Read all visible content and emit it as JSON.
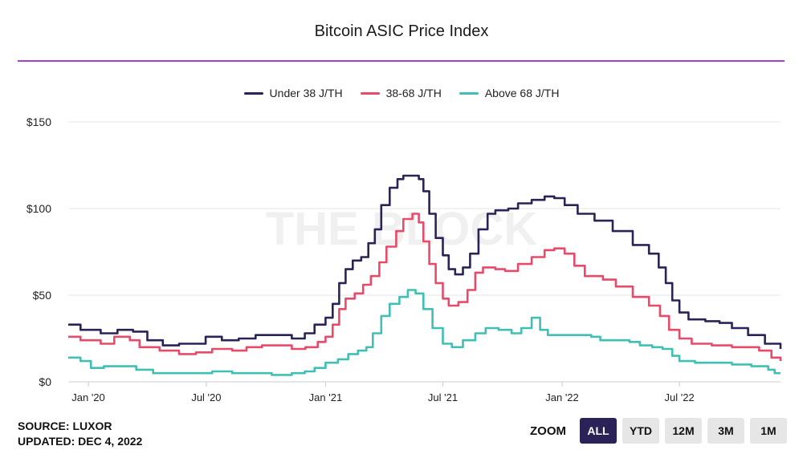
{
  "header": {
    "title": "Bitcoin ASIC Price Index"
  },
  "watermark": "THE BLOCK",
  "footer": {
    "source": "SOURCE: LUXOR",
    "updated": "UPDATED: DEC 4, 2022"
  },
  "zoom": {
    "label": "ZOOM",
    "buttons": [
      "ALL",
      "YTD",
      "12M",
      "3M",
      "1M"
    ],
    "active": "ALL"
  },
  "colors": {
    "accent_rule": "#a53fd1",
    "under38": "#2b2257",
    "mid": "#e84a6a",
    "above68": "#40c0b4",
    "grid": "#e6e6e6",
    "watermark": "#f0f0f0"
  },
  "chart_data": {
    "type": "line",
    "xlabel": "",
    "ylabel": "",
    "ylim": [
      0,
      150
    ],
    "y_ticks": [
      0,
      50,
      100,
      150
    ],
    "y_tick_labels": [
      "$0",
      "$50",
      "$100",
      "$150"
    ],
    "x_range": [
      "2019-12-01",
      "2022-12-04"
    ],
    "x_ticks": [
      "2020-01-01",
      "2020-07-01",
      "2021-01-01",
      "2021-07-01",
      "2022-01-01",
      "2022-07-01"
    ],
    "x_tick_labels": [
      "Jan '20",
      "Jul '20",
      "Jan '21",
      "Jul '21",
      "Jan '22",
      "Jul '22"
    ],
    "grid": true,
    "legend_position": "top-center",
    "step": true,
    "series": [
      {
        "name": "Under 38 J/TH",
        "color": "#2b2257",
        "points": [
          [
            "2019-12-01",
            33
          ],
          [
            "2019-12-20",
            30
          ],
          [
            "2020-01-20",
            28
          ],
          [
            "2020-02-15",
            30
          ],
          [
            "2020-03-10",
            29
          ],
          [
            "2020-04-01",
            24
          ],
          [
            "2020-04-25",
            21
          ],
          [
            "2020-05-20",
            22
          ],
          [
            "2020-06-10",
            22
          ],
          [
            "2020-06-30",
            26
          ],
          [
            "2020-07-25",
            24
          ],
          [
            "2020-08-20",
            25
          ],
          [
            "2020-09-15",
            27
          ],
          [
            "2020-10-15",
            27
          ],
          [
            "2020-11-10",
            25
          ],
          [
            "2020-11-30",
            28
          ],
          [
            "2020-12-15",
            33
          ],
          [
            "2021-01-01",
            37
          ],
          [
            "2021-01-12",
            45
          ],
          [
            "2021-01-22",
            57
          ],
          [
            "2021-02-01",
            65
          ],
          [
            "2021-02-12",
            70
          ],
          [
            "2021-02-25",
            72
          ],
          [
            "2021-03-08",
            80
          ],
          [
            "2021-03-18",
            88
          ],
          [
            "2021-03-28",
            102
          ],
          [
            "2021-04-10",
            112
          ],
          [
            "2021-04-22",
            117
          ],
          [
            "2021-05-01",
            119
          ],
          [
            "2021-05-15",
            119
          ],
          [
            "2021-05-25",
            117
          ],
          [
            "2021-06-01",
            110
          ],
          [
            "2021-06-10",
            97
          ],
          [
            "2021-06-20",
            83
          ],
          [
            "2021-07-01",
            73
          ],
          [
            "2021-07-10",
            65
          ],
          [
            "2021-07-20",
            62
          ],
          [
            "2021-08-01",
            66
          ],
          [
            "2021-08-12",
            74
          ],
          [
            "2021-08-25",
            88
          ],
          [
            "2021-09-08",
            97
          ],
          [
            "2021-09-20",
            99
          ],
          [
            "2021-10-10",
            100
          ],
          [
            "2021-10-25",
            103
          ],
          [
            "2021-11-15",
            105
          ],
          [
            "2021-12-05",
            107
          ],
          [
            "2021-12-20",
            106
          ],
          [
            "2022-01-05",
            102
          ],
          [
            "2022-01-25",
            97
          ],
          [
            "2022-02-20",
            93
          ],
          [
            "2022-03-20",
            87
          ],
          [
            "2022-04-20",
            79
          ],
          [
            "2022-05-15",
            74
          ],
          [
            "2022-05-30",
            66
          ],
          [
            "2022-06-10",
            57
          ],
          [
            "2022-06-20",
            47
          ],
          [
            "2022-07-01",
            40
          ],
          [
            "2022-07-15",
            36
          ],
          [
            "2022-08-10",
            35
          ],
          [
            "2022-09-01",
            34
          ],
          [
            "2022-09-20",
            31
          ],
          [
            "2022-10-15",
            27
          ],
          [
            "2022-11-10",
            22
          ],
          [
            "2022-12-04",
            19
          ]
        ]
      },
      {
        "name": "38-68 J/TH",
        "color": "#e84a6a",
        "points": [
          [
            "2019-12-01",
            26
          ],
          [
            "2019-12-20",
            24
          ],
          [
            "2020-01-20",
            22
          ],
          [
            "2020-02-10",
            26
          ],
          [
            "2020-03-05",
            24
          ],
          [
            "2020-03-20",
            20
          ],
          [
            "2020-04-20",
            18
          ],
          [
            "2020-05-20",
            16
          ],
          [
            "2020-06-15",
            17
          ],
          [
            "2020-07-10",
            19
          ],
          [
            "2020-08-10",
            18
          ],
          [
            "2020-09-01",
            20
          ],
          [
            "2020-09-25",
            21
          ],
          [
            "2020-10-20",
            21
          ],
          [
            "2020-11-10",
            19
          ],
          [
            "2020-12-01",
            20
          ],
          [
            "2020-12-20",
            23
          ],
          [
            "2021-01-01",
            26
          ],
          [
            "2021-01-12",
            33
          ],
          [
            "2021-01-22",
            42
          ],
          [
            "2021-02-01",
            48
          ],
          [
            "2021-02-15",
            51
          ],
          [
            "2021-02-28",
            56
          ],
          [
            "2021-03-12",
            61
          ],
          [
            "2021-03-25",
            69
          ],
          [
            "2021-04-05",
            78
          ],
          [
            "2021-04-20",
            87
          ],
          [
            "2021-05-01",
            94
          ],
          [
            "2021-05-15",
            97
          ],
          [
            "2021-05-25",
            92
          ],
          [
            "2021-06-01",
            81
          ],
          [
            "2021-06-10",
            68
          ],
          [
            "2021-06-20",
            57
          ],
          [
            "2021-07-01",
            48
          ],
          [
            "2021-07-10",
            44
          ],
          [
            "2021-07-25",
            46
          ],
          [
            "2021-08-08",
            53
          ],
          [
            "2021-08-20",
            63
          ],
          [
            "2021-09-01",
            66
          ],
          [
            "2021-09-20",
            65
          ],
          [
            "2021-10-05",
            64
          ],
          [
            "2021-10-25",
            68
          ],
          [
            "2021-11-15",
            72
          ],
          [
            "2021-12-05",
            76
          ],
          [
            "2021-12-20",
            77
          ],
          [
            "2022-01-05",
            74
          ],
          [
            "2022-01-20",
            67
          ],
          [
            "2022-02-05",
            61
          ],
          [
            "2022-03-05",
            59
          ],
          [
            "2022-03-25",
            55
          ],
          [
            "2022-04-20",
            49
          ],
          [
            "2022-05-15",
            44
          ],
          [
            "2022-06-01",
            38
          ],
          [
            "2022-06-15",
            30
          ],
          [
            "2022-07-01",
            25
          ],
          [
            "2022-07-20",
            22
          ],
          [
            "2022-08-20",
            21
          ],
          [
            "2022-09-20",
            20
          ],
          [
            "2022-10-15",
            20
          ],
          [
            "2022-11-01",
            18
          ],
          [
            "2022-11-20",
            14
          ],
          [
            "2022-12-04",
            12
          ]
        ]
      },
      {
        "name": "Above 68 J/TH",
        "color": "#40c0b4",
        "points": [
          [
            "2019-12-01",
            14
          ],
          [
            "2019-12-20",
            12
          ],
          [
            "2020-01-05",
            8
          ],
          [
            "2020-01-25",
            9
          ],
          [
            "2020-02-20",
            9
          ],
          [
            "2020-03-15",
            7
          ],
          [
            "2020-04-10",
            5
          ],
          [
            "2020-05-20",
            5
          ],
          [
            "2020-06-20",
            5
          ],
          [
            "2020-07-10",
            6
          ],
          [
            "2020-08-10",
            5
          ],
          [
            "2020-09-10",
            5
          ],
          [
            "2020-10-10",
            4
          ],
          [
            "2020-11-10",
            5
          ],
          [
            "2020-11-30",
            6
          ],
          [
            "2020-12-15",
            8
          ],
          [
            "2021-01-01",
            11
          ],
          [
            "2021-01-20",
            13
          ],
          [
            "2021-02-05",
            16
          ],
          [
            "2021-02-20",
            18
          ],
          [
            "2021-03-05",
            20
          ],
          [
            "2021-03-15",
            28
          ],
          [
            "2021-03-28",
            38
          ],
          [
            "2021-04-10",
            45
          ],
          [
            "2021-04-25",
            49
          ],
          [
            "2021-05-08",
            53
          ],
          [
            "2021-05-20",
            51
          ],
          [
            "2021-06-01",
            42
          ],
          [
            "2021-06-15",
            31
          ],
          [
            "2021-07-01",
            22
          ],
          [
            "2021-07-15",
            20
          ],
          [
            "2021-08-01",
            24
          ],
          [
            "2021-08-20",
            28
          ],
          [
            "2021-09-05",
            31
          ],
          [
            "2021-09-25",
            30
          ],
          [
            "2021-10-15",
            28
          ],
          [
            "2021-10-30",
            31
          ],
          [
            "2021-11-15",
            37
          ],
          [
            "2021-11-28",
            30
          ],
          [
            "2021-12-10",
            27
          ],
          [
            "2022-01-15",
            27
          ],
          [
            "2022-02-15",
            26
          ],
          [
            "2022-03-01",
            24
          ],
          [
            "2022-03-25",
            24
          ],
          [
            "2022-04-15",
            23
          ],
          [
            "2022-05-01",
            21
          ],
          [
            "2022-05-20",
            20
          ],
          [
            "2022-06-05",
            19
          ],
          [
            "2022-06-20",
            15
          ],
          [
            "2022-07-01",
            12
          ],
          [
            "2022-07-25",
            11
          ],
          [
            "2022-08-25",
            11
          ],
          [
            "2022-09-20",
            10
          ],
          [
            "2022-10-20",
            9
          ],
          [
            "2022-11-15",
            7
          ],
          [
            "2022-11-25",
            5
          ],
          [
            "2022-12-04",
            5
          ]
        ]
      }
    ]
  }
}
